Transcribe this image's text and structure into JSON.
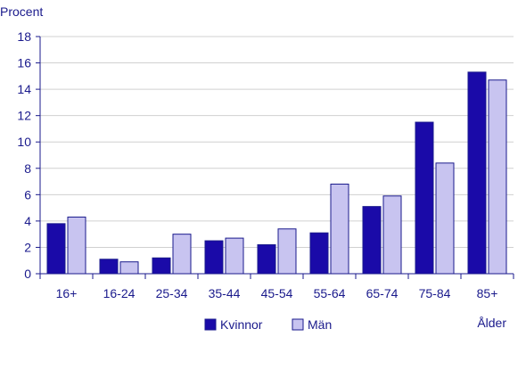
{
  "chart_data": {
    "type": "bar",
    "ylabel": "Procent",
    "xlabel": "Ålder",
    "categories": [
      "16+",
      "16-24",
      "25-34",
      "35-44",
      "45-54",
      "55-64",
      "65-74",
      "75-84",
      "85+"
    ],
    "series": [
      {
        "name": "Kvinnor",
        "color": "#1a0aa8",
        "values": [
          3.8,
          1.1,
          1.2,
          2.5,
          2.2,
          3.1,
          5.1,
          11.5,
          15.3
        ]
      },
      {
        "name": "Män",
        "color": "#c8c4f0",
        "values": [
          4.3,
          0.9,
          3.0,
          2.7,
          3.4,
          6.8,
          5.9,
          8.4,
          14.7
        ]
      }
    ],
    "ylim": [
      0,
      18
    ],
    "yticks": [
      0,
      2,
      4,
      6,
      8,
      10,
      12,
      14,
      16,
      18
    ],
    "grid": true,
    "legend_position": "bottom-center",
    "axis_color": "#1a1a8c",
    "grid_color": "#d0d0d0",
    "edge_color": "#1a1a8c"
  }
}
